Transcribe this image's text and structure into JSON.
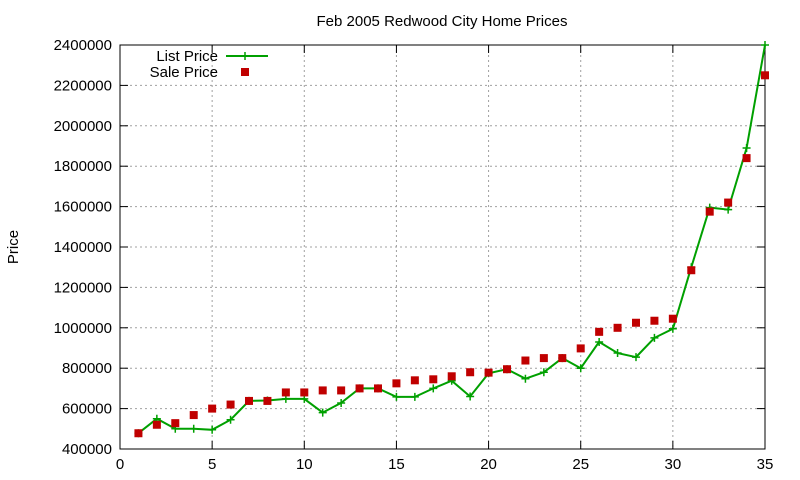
{
  "chart_data": {
    "type": "line",
    "title": "Feb 2005 Redwood City Home Prices",
    "xlabel": "",
    "ylabel": "Price",
    "xlim": [
      0,
      35
    ],
    "ylim": [
      400000,
      2400000
    ],
    "x_ticks": [
      0,
      5,
      10,
      15,
      20,
      25,
      30,
      35
    ],
    "y_ticks": [
      400000,
      600000,
      800000,
      1000000,
      1200000,
      1400000,
      1600000,
      1800000,
      2000000,
      2200000,
      2400000
    ],
    "grid": true,
    "legend_position": "top-left",
    "series": [
      {
        "name": "List Price",
        "style": "line+cross",
        "color": "#00a000",
        "x": [
          1,
          2,
          3,
          4,
          5,
          6,
          7,
          8,
          9,
          10,
          11,
          12,
          13,
          14,
          15,
          16,
          17,
          18,
          19,
          20,
          21,
          22,
          23,
          24,
          25,
          26,
          27,
          28,
          29,
          30,
          31,
          32,
          33,
          34,
          35
        ],
        "values": [
          478000,
          550000,
          500000,
          500000,
          495000,
          545000,
          638000,
          640000,
          648000,
          648000,
          580000,
          628000,
          700000,
          700000,
          658000,
          658000,
          700000,
          738000,
          660000,
          775000,
          795000,
          748000,
          780000,
          850000,
          800000,
          930000,
          875000,
          855000,
          950000,
          995000,
          1300000,
          1595000,
          1585000,
          1890000,
          2400000
        ]
      },
      {
        "name": "Sale Price",
        "style": "square",
        "color": "#c00000",
        "x": [
          1,
          2,
          3,
          4,
          5,
          6,
          7,
          8,
          9,
          10,
          11,
          12,
          13,
          14,
          15,
          16,
          17,
          18,
          19,
          20,
          21,
          22,
          23,
          24,
          25,
          26,
          27,
          28,
          29,
          30,
          31,
          32,
          33,
          34,
          35
        ],
        "values": [
          478000,
          520000,
          528000,
          568000,
          600000,
          620000,
          638000,
          638000,
          680000,
          680000,
          690000,
          690000,
          700000,
          700000,
          725000,
          740000,
          745000,
          760000,
          780000,
          778000,
          795000,
          838000,
          850000,
          850000,
          898000,
          980000,
          1000000,
          1025000,
          1035000,
          1045000,
          1285000,
          1575000,
          1620000,
          1840000,
          2250000
        ]
      }
    ]
  }
}
